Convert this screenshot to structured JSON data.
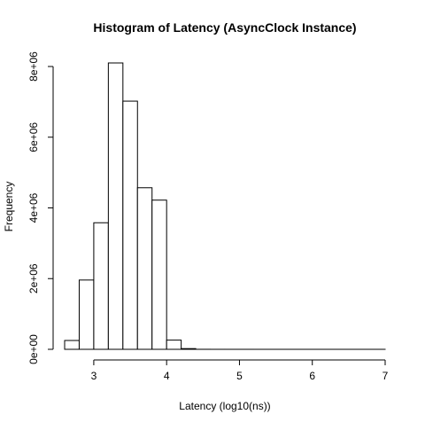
{
  "chart_data": {
    "type": "bar",
    "title": "Histogram of Latency (AsyncClock Instance)",
    "xlabel": "Latency (log10(ns))",
    "ylabel": "Frequency",
    "xlim": [
      2.6,
      7.0
    ],
    "ylim": [
      0,
      8100000
    ],
    "grid": false,
    "legend": "none",
    "bar_fill": "#ffffff",
    "bar_stroke": "#000000",
    "bin_width": 0.2,
    "bins": [
      {
        "start": 2.6,
        "end": 2.8,
        "value": 250000
      },
      {
        "start": 2.8,
        "end": 3.0,
        "value": 1960000
      },
      {
        "start": 3.0,
        "end": 3.2,
        "value": 3580000
      },
      {
        "start": 3.2,
        "end": 3.4,
        "value": 8100000
      },
      {
        "start": 3.4,
        "end": 3.6,
        "value": 7020000
      },
      {
        "start": 3.6,
        "end": 3.8,
        "value": 4570000
      },
      {
        "start": 3.8,
        "end": 4.0,
        "value": 4220000
      },
      {
        "start": 4.0,
        "end": 4.2,
        "value": 260000
      },
      {
        "start": 4.2,
        "end": 4.4,
        "value": 20000
      },
      {
        "start": 4.4,
        "end": 4.6,
        "value": 1000
      },
      {
        "start": 4.6,
        "end": 4.8,
        "value": 300
      },
      {
        "start": 4.8,
        "end": 5.0,
        "value": 100
      },
      {
        "start": 5.0,
        "end": 5.2,
        "value": 50
      },
      {
        "start": 5.2,
        "end": 5.4,
        "value": 30
      },
      {
        "start": 5.4,
        "end": 5.6,
        "value": 20
      },
      {
        "start": 5.6,
        "end": 5.8,
        "value": 10
      },
      {
        "start": 5.8,
        "end": 6.0,
        "value": 8
      },
      {
        "start": 6.0,
        "end": 6.2,
        "value": 5
      },
      {
        "start": 6.2,
        "end": 6.4,
        "value": 3
      },
      {
        "start": 6.4,
        "end": 6.6,
        "value": 2
      },
      {
        "start": 6.6,
        "end": 6.8,
        "value": 1
      },
      {
        "start": 6.8,
        "end": 7.0,
        "value": 1
      }
    ],
    "x_ticks": [
      {
        "value": 3,
        "label": "3"
      },
      {
        "value": 4,
        "label": "4"
      },
      {
        "value": 5,
        "label": "5"
      },
      {
        "value": 6,
        "label": "6"
      },
      {
        "value": 7,
        "label": "7"
      }
    ],
    "y_ticks": [
      {
        "value": 0,
        "label": "0e+00"
      },
      {
        "value": 2000000,
        "label": "2e+06"
      },
      {
        "value": 4000000,
        "label": "4e+06"
      },
      {
        "value": 6000000,
        "label": "6e+06"
      },
      {
        "value": 8000000,
        "label": "8e+06"
      }
    ]
  }
}
